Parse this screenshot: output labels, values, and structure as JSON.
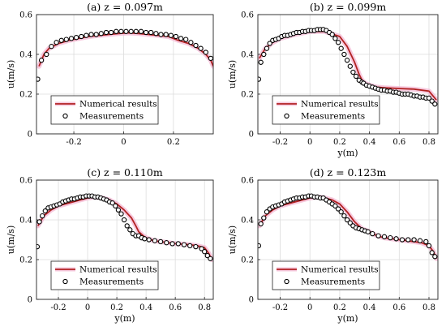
{
  "chart_data": [
    {
      "type": "line",
      "title": "(a) z = 0.097m",
      "xlabel": "",
      "ylabel": "u(m/s)",
      "xlim": [
        -0.35,
        0.36
      ],
      "ylim": [
        0,
        0.6
      ],
      "xticks": [
        -0.2,
        0,
        0.2
      ],
      "xtick_labels": [
        "-0.2",
        "0",
        "0.2"
      ],
      "yticks": [
        0,
        0.2,
        0.4,
        0.6
      ],
      "ytick_labels": [
        "0",
        "0.2",
        "0.4",
        "0.6"
      ],
      "grid": true,
      "legend": "lower-left",
      "series": [
        {
          "name": "Numerical results",
          "kind": "line",
          "color": "#b22222",
          "band_color": "#f4b8d4",
          "x": [
            -0.34,
            -0.32,
            -0.3,
            -0.26,
            -0.22,
            -0.18,
            -0.14,
            -0.1,
            -0.06,
            -0.02,
            0.02,
            0.06,
            0.1,
            0.14,
            0.18,
            0.22,
            0.26,
            0.3,
            0.33,
            0.35,
            0.36
          ],
          "y": [
            0.34,
            0.4,
            0.43,
            0.455,
            0.47,
            0.48,
            0.49,
            0.495,
            0.5,
            0.505,
            0.508,
            0.505,
            0.5,
            0.495,
            0.49,
            0.47,
            0.455,
            0.43,
            0.4,
            0.37,
            0.34
          ]
        },
        {
          "name": "Measurements",
          "kind": "scatter",
          "color": "#000000",
          "x": [
            -0.345,
            -0.33,
            -0.31,
            -0.29,
            -0.27,
            -0.25,
            -0.23,
            -0.21,
            -0.19,
            -0.17,
            -0.15,
            -0.13,
            -0.11,
            -0.09,
            -0.07,
            -0.05,
            -0.03,
            -0.01,
            0.01,
            0.03,
            0.05,
            0.07,
            0.09,
            0.11,
            0.13,
            0.15,
            0.17,
            0.19,
            0.21,
            0.23,
            0.25,
            0.27,
            0.29,
            0.31,
            0.33,
            0.35
          ],
          "y": [
            0.275,
            0.37,
            0.4,
            0.44,
            0.46,
            0.47,
            0.475,
            0.48,
            0.485,
            0.49,
            0.495,
            0.5,
            0.5,
            0.505,
            0.51,
            0.51,
            0.515,
            0.515,
            0.515,
            0.515,
            0.515,
            0.515,
            0.51,
            0.51,
            0.505,
            0.5,
            0.5,
            0.495,
            0.49,
            0.48,
            0.475,
            0.46,
            0.445,
            0.43,
            0.41,
            0.38
          ]
        }
      ]
    },
    {
      "type": "line",
      "title": "(b) z = 0.099m",
      "xlabel": "y(m)",
      "ylabel": "u(m/s)",
      "xlim": [
        -0.35,
        0.86
      ],
      "ylim": [
        0,
        0.6
      ],
      "xticks": [
        -0.2,
        0,
        0.2,
        0.4,
        0.6,
        0.8
      ],
      "xtick_labels": [
        "-0.2",
        "0",
        "0.2",
        "0.4",
        "0.6",
        "0.8"
      ],
      "yticks": [
        0,
        0.2,
        0.4,
        0.6
      ],
      "ytick_labels": [
        "0",
        "0.2",
        "0.4",
        "0.6"
      ],
      "grid": true,
      "legend": "lower-left",
      "series": [
        {
          "name": "Numerical results",
          "kind": "line",
          "color": "#b22222",
          "band_color": "#f4b8d4",
          "x": [
            -0.34,
            -0.3,
            -0.25,
            -0.2,
            -0.1,
            0,
            0.1,
            0.2,
            0.25,
            0.3,
            0.33,
            0.35,
            0.37,
            0.4,
            0.45,
            0.5,
            0.6,
            0.7,
            0.8,
            0.85
          ],
          "y": [
            0.38,
            0.43,
            0.46,
            0.48,
            0.5,
            0.515,
            0.515,
            0.49,
            0.44,
            0.36,
            0.3,
            0.27,
            0.255,
            0.245,
            0.235,
            0.232,
            0.228,
            0.225,
            0.215,
            0.17
          ]
        },
        {
          "name": "Measurements",
          "kind": "scatter",
          "color": "#000000",
          "x": [
            -0.345,
            -0.33,
            -0.31,
            -0.29,
            -0.27,
            -0.25,
            -0.23,
            -0.21,
            -0.19,
            -0.17,
            -0.15,
            -0.13,
            -0.11,
            -0.09,
            -0.07,
            -0.05,
            -0.03,
            -0.01,
            0.01,
            0.03,
            0.05,
            0.07,
            0.09,
            0.11,
            0.13,
            0.15,
            0.17,
            0.19,
            0.21,
            0.23,
            0.25,
            0.27,
            0.29,
            0.31,
            0.33,
            0.35,
            0.36,
            0.38,
            0.4,
            0.42,
            0.44,
            0.46,
            0.48,
            0.5,
            0.52,
            0.54,
            0.56,
            0.58,
            0.6,
            0.62,
            0.64,
            0.66,
            0.68,
            0.7,
            0.72,
            0.74,
            0.76,
            0.78,
            0.8,
            0.82,
            0.84
          ],
          "y": [
            0.275,
            0.36,
            0.4,
            0.43,
            0.455,
            0.47,
            0.475,
            0.48,
            0.49,
            0.495,
            0.495,
            0.5,
            0.505,
            0.51,
            0.51,
            0.515,
            0.515,
            0.52,
            0.52,
            0.52,
            0.525,
            0.525,
            0.525,
            0.52,
            0.51,
            0.5,
            0.48,
            0.46,
            0.43,
            0.4,
            0.37,
            0.34,
            0.31,
            0.29,
            0.27,
            0.26,
            0.255,
            0.245,
            0.24,
            0.235,
            0.23,
            0.225,
            0.22,
            0.22,
            0.215,
            0.215,
            0.21,
            0.21,
            0.205,
            0.2,
            0.2,
            0.2,
            0.195,
            0.19,
            0.19,
            0.185,
            0.185,
            0.18,
            0.18,
            0.165,
            0.15
          ]
        }
      ]
    },
    {
      "type": "line",
      "title": "(c) z = 0.110m",
      "xlabel": "y(m)",
      "ylabel": "u(m/s)",
      "xlim": [
        -0.35,
        0.86
      ],
      "ylim": [
        0,
        0.6
      ],
      "xticks": [
        -0.2,
        0,
        0.2,
        0.4,
        0.6,
        0.8
      ],
      "xtick_labels": [
        "-0.2",
        "0",
        "0.2",
        "0.4",
        "0.6",
        "0.8"
      ],
      "yticks": [
        0,
        0.2,
        0.4,
        0.6
      ],
      "ytick_labels": [
        "0",
        "0.2",
        "0.4",
        "0.6"
      ],
      "grid": true,
      "legend": "lower-left",
      "series": [
        {
          "name": "Numerical results",
          "kind": "line",
          "color": "#b22222",
          "band_color": "#f4b8d4",
          "x": [
            -0.34,
            -0.3,
            -0.25,
            -0.2,
            -0.1,
            0,
            0.05,
            0.1,
            0.15,
            0.2,
            0.25,
            0.3,
            0.33,
            0.35,
            0.38,
            0.4,
            0.45,
            0.5,
            0.6,
            0.7,
            0.75,
            0.8,
            0.83,
            0.85
          ],
          "y": [
            0.37,
            0.42,
            0.45,
            0.47,
            0.49,
            0.51,
            0.515,
            0.51,
            0.5,
            0.48,
            0.45,
            0.41,
            0.37,
            0.34,
            0.32,
            0.31,
            0.295,
            0.29,
            0.28,
            0.275,
            0.27,
            0.26,
            0.23,
            0.2
          ]
        },
        {
          "name": "Measurements",
          "kind": "scatter",
          "color": "#000000",
          "x": [
            -0.345,
            -0.33,
            -0.31,
            -0.29,
            -0.27,
            -0.25,
            -0.23,
            -0.21,
            -0.19,
            -0.17,
            -0.15,
            -0.13,
            -0.11,
            -0.09,
            -0.07,
            -0.05,
            -0.03,
            -0.01,
            0.01,
            0.03,
            0.05,
            0.07,
            0.09,
            0.11,
            0.13,
            0.15,
            0.17,
            0.19,
            0.21,
            0.23,
            0.25,
            0.27,
            0.29,
            0.31,
            0.33,
            0.35,
            0.37,
            0.39,
            0.42,
            0.46,
            0.5,
            0.54,
            0.58,
            0.62,
            0.66,
            0.7,
            0.74,
            0.78,
            0.8,
            0.82,
            0.84
          ],
          "y": [
            0.265,
            0.39,
            0.42,
            0.445,
            0.46,
            0.465,
            0.47,
            0.475,
            0.48,
            0.49,
            0.495,
            0.5,
            0.505,
            0.505,
            0.51,
            0.515,
            0.515,
            0.52,
            0.52,
            0.52,
            0.515,
            0.515,
            0.51,
            0.505,
            0.5,
            0.49,
            0.485,
            0.47,
            0.45,
            0.43,
            0.4,
            0.37,
            0.35,
            0.33,
            0.32,
            0.32,
            0.31,
            0.305,
            0.3,
            0.295,
            0.29,
            0.285,
            0.28,
            0.28,
            0.275,
            0.27,
            0.265,
            0.255,
            0.24,
            0.22,
            0.205
          ]
        }
      ]
    },
    {
      "type": "line",
      "title": "(d) z = 0.123m",
      "xlabel": "y(m)",
      "ylabel": "u(m/s)",
      "xlim": [
        -0.35,
        0.86
      ],
      "ylim": [
        0,
        0.6
      ],
      "xticks": [
        -0.2,
        0,
        0.2,
        0.4,
        0.6,
        0.8
      ],
      "xtick_labels": [
        "-0.2",
        "0",
        "0.2",
        "0.4",
        "0.6",
        "0.8"
      ],
      "yticks": [
        0,
        0.2,
        0.4,
        0.6
      ],
      "ytick_labels": [
        "0",
        "0.2",
        "0.4",
        "0.6"
      ],
      "grid": true,
      "legend": "lower-left",
      "series": [
        {
          "name": "Numerical results",
          "kind": "line",
          "color": "#b22222",
          "band_color": "#f4b8d4",
          "x": [
            -0.34,
            -0.3,
            -0.25,
            -0.2,
            -0.1,
            0,
            0.05,
            0.1,
            0.15,
            0.2,
            0.25,
            0.3,
            0.35,
            0.4,
            0.45,
            0.5,
            0.6,
            0.7,
            0.75,
            0.8,
            0.83,
            0.85
          ],
          "y": [
            0.37,
            0.42,
            0.45,
            0.47,
            0.49,
            0.51,
            0.515,
            0.51,
            0.5,
            0.48,
            0.44,
            0.39,
            0.355,
            0.34,
            0.32,
            0.31,
            0.3,
            0.29,
            0.285,
            0.27,
            0.24,
            0.205
          ]
        },
        {
          "name": "Measurements",
          "kind": "scatter",
          "color": "#000000",
          "x": [
            -0.345,
            -0.33,
            -0.31,
            -0.29,
            -0.27,
            -0.25,
            -0.23,
            -0.21,
            -0.19,
            -0.17,
            -0.15,
            -0.13,
            -0.11,
            -0.09,
            -0.07,
            -0.05,
            -0.03,
            -0.01,
            0.01,
            0.03,
            0.05,
            0.07,
            0.09,
            0.11,
            0.13,
            0.15,
            0.17,
            0.19,
            0.21,
            0.23,
            0.25,
            0.27,
            0.29,
            0.31,
            0.33,
            0.35,
            0.37,
            0.39,
            0.42,
            0.46,
            0.5,
            0.54,
            0.58,
            0.62,
            0.66,
            0.7,
            0.74,
            0.78,
            0.8,
            0.82,
            0.84
          ],
          "y": [
            0.27,
            0.38,
            0.41,
            0.44,
            0.455,
            0.465,
            0.47,
            0.475,
            0.48,
            0.49,
            0.495,
            0.5,
            0.505,
            0.51,
            0.51,
            0.515,
            0.515,
            0.52,
            0.52,
            0.515,
            0.515,
            0.51,
            0.51,
            0.5,
            0.49,
            0.48,
            0.47,
            0.455,
            0.44,
            0.42,
            0.4,
            0.385,
            0.37,
            0.36,
            0.355,
            0.35,
            0.345,
            0.34,
            0.33,
            0.32,
            0.315,
            0.31,
            0.305,
            0.3,
            0.3,
            0.3,
            0.295,
            0.29,
            0.27,
            0.235,
            0.215
          ]
        }
      ]
    }
  ]
}
